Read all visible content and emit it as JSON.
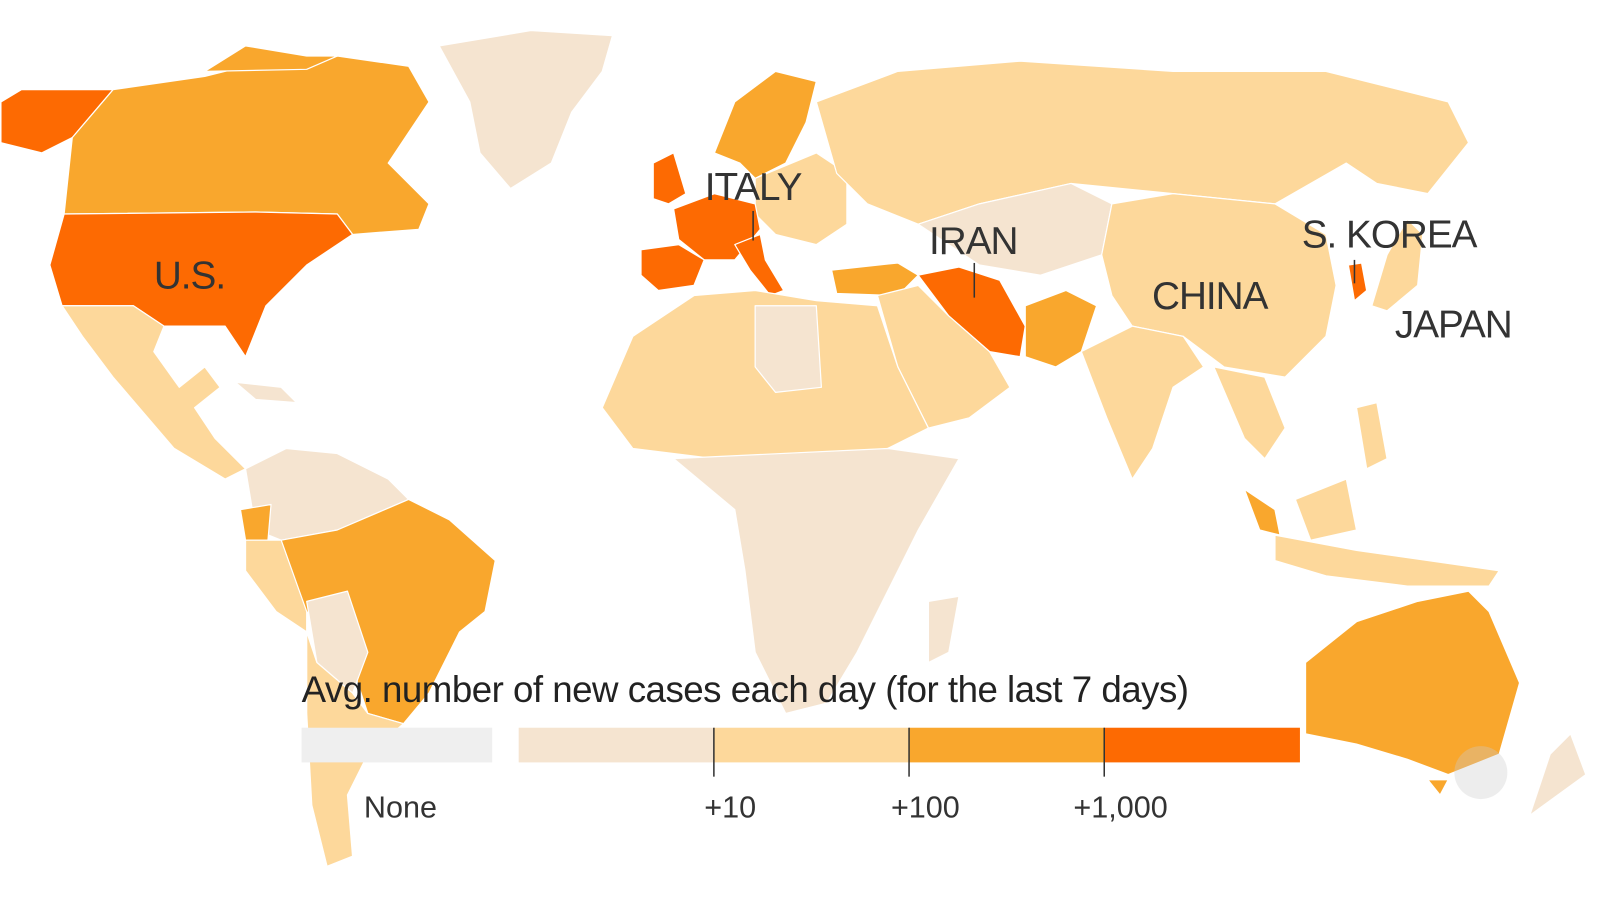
{
  "legend": {
    "title": "Avg. number of new cases each day (for the last 7 days)",
    "none": {
      "label": "None",
      "color": "#efefef"
    },
    "scale": {
      "colors": [
        "#f5e4d0",
        "#fdd89b",
        "#f9a72d",
        "#fd6a02"
      ],
      "ticks": [
        "+10",
        "+100",
        "+1,000"
      ]
    }
  },
  "labels": [
    "U.S.",
    "ITALY",
    "IRAN",
    "S. KOREA",
    "CHINA",
    "JAPAN"
  ]
}
